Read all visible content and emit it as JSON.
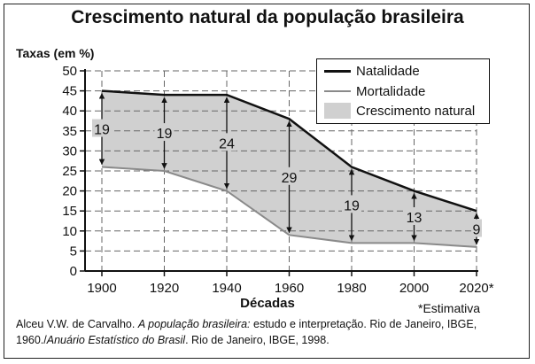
{
  "chart_data": {
    "type": "area",
    "title": "Crescimento natural da população brasileira",
    "ylabel": "Taxas (em %)",
    "xlabel": "Décadas",
    "x": [
      1900,
      1920,
      1940,
      1960,
      1980,
      2000,
      2020
    ],
    "x_tick_labels": [
      "1900",
      "1920",
      "1940",
      "1960",
      "1980",
      "2000",
      "2020*"
    ],
    "y_ticks": [
      0,
      5,
      10,
      15,
      20,
      25,
      30,
      35,
      40,
      45,
      50
    ],
    "ylim": [
      0,
      50
    ],
    "grid": true,
    "legend_position": "top-right",
    "series": [
      {
        "name": "Natalidade",
        "values": [
          45,
          44,
          44,
          38,
          26,
          20,
          15
        ],
        "color": "#111111"
      },
      {
        "name": "Mortalidade",
        "values": [
          26,
          25,
          20,
          9,
          7,
          7,
          6
        ],
        "color": "#8a8a8a"
      }
    ],
    "area": {
      "name": "Crescimento natural",
      "color": "#d0d0d0"
    },
    "data_labels": [
      "19",
      "19",
      "24",
      "29",
      "19",
      "13",
      "9"
    ],
    "note": "*Estimativa"
  },
  "source": {
    "author": "Alceu V.W. de Carvalho. ",
    "book": "A população brasileira:",
    "rest1": " estudo e interpretação. Rio de Janeiro, IBGE, 1960./",
    "yearbook": "Anuário Estatístico do Brasil",
    "rest2": ". Rio de Janeiro, IBGE, 1998."
  }
}
